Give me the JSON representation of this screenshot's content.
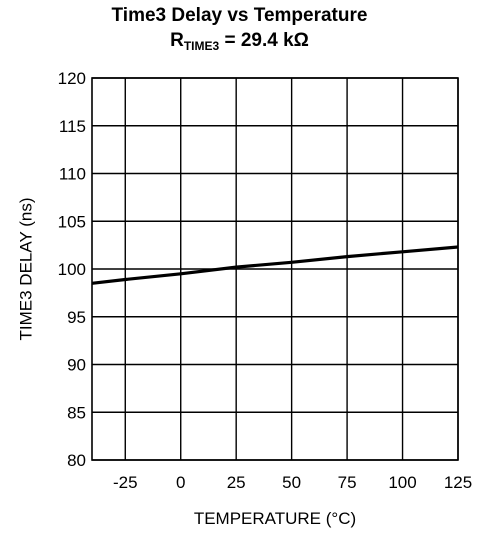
{
  "title_line1": "Time3 Delay vs Temperature",
  "title_line2": {
    "prefix": "R",
    "subscript": "TIME3",
    "suffix": " = 29.4 kΩ"
  },
  "chart_data": {
    "type": "line",
    "title": "Time3 Delay vs Temperature",
    "subtitle": "RTIME3 = 29.4 kΩ",
    "xlabel": "TEMPERATURE (°C)",
    "ylabel": "TIME3 DELAY (ns)",
    "xlim": [
      -40,
      125
    ],
    "ylim": [
      80,
      120
    ],
    "xticks": [
      -25,
      0,
      25,
      50,
      75,
      100,
      125
    ],
    "yticks": [
      80,
      85,
      90,
      95,
      100,
      105,
      110,
      115,
      120
    ],
    "grid": true,
    "series": [
      {
        "x": [
          -40,
          -25,
          0,
          25,
          50,
          75,
          100,
          125
        ],
        "y": [
          98.5,
          98.9,
          99.5,
          100.2,
          100.7,
          101.3,
          101.8,
          102.3
        ]
      }
    ],
    "colors": {
      "line": "#000000",
      "grid": "#000000",
      "background": "#ffffff"
    }
  }
}
